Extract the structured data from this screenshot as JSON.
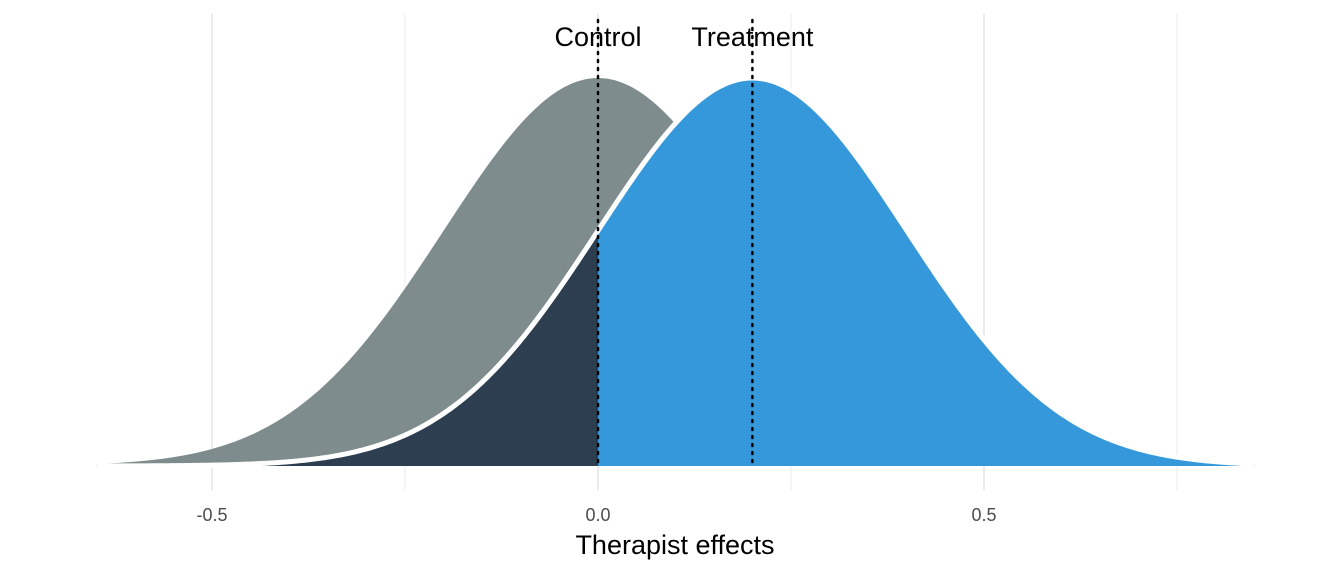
{
  "chart_data": {
    "type": "area",
    "title": "",
    "xlabel": "Therapist effects",
    "ylabel": "",
    "xlim": [
      -0.65,
      0.85
    ],
    "x_ticks": [
      {
        "value": -0.5,
        "label": "-0.5"
      },
      {
        "value": 0.0,
        "label": "0.0"
      },
      {
        "value": 0.5,
        "label": "0.5"
      }
    ],
    "x_minor_gridlines": [
      -0.25,
      0.25,
      0.75
    ],
    "grid": true,
    "legend": "none",
    "series": [
      {
        "name": "Control",
        "mean": 0.0,
        "sd": 0.2,
        "color": "#7f8c8d"
      },
      {
        "name": "Treatment",
        "mean": 0.2,
        "sd": 0.2,
        "color": "#3498db"
      }
    ],
    "shaded_region": {
      "series": "Treatment",
      "x_max": 0.0,
      "color": "#2c3e50"
    },
    "reference_lines": [
      {
        "x": 0.0,
        "label": "Control",
        "style": "dotted"
      },
      {
        "x": 0.2,
        "label": "Treatment",
        "style": "dotted"
      }
    ]
  }
}
